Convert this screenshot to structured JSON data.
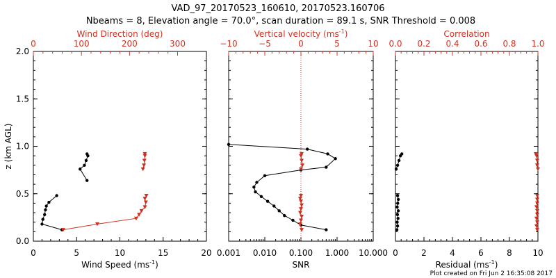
{
  "figure": {
    "title_line1": "VAD_97_20170523_160610, 20170523.160706",
    "title_line2": "Nbeams = 8, Elevation angle = 70.0°, scan duration = 89.1 s, SNR Threshold = 0.008",
    "footer": "Plot created on Fri Jun  2 16:35:08 2017",
    "colors": {
      "black": "#000000",
      "red": "#d03020"
    }
  },
  "chart_data": [
    {
      "type": "line",
      "panel": "wind",
      "ylabel": "z (km AGL)",
      "ylim": [
        0,
        2
      ],
      "yticks": [
        "0.0",
        "0.5",
        "1.0",
        "1.5",
        "2.0"
      ],
      "xlabel_bottom": "Wind Speed (ms",
      "xlabel_bottom_sup": "-1",
      "xlabel_bottom_suffix": ")",
      "xlim_bottom": [
        0,
        20
      ],
      "xticks_bottom": [
        "0",
        "5",
        "10",
        "15",
        "20"
      ],
      "xlabel_top": "Wind Direction (deg)",
      "xlim_top": [
        0,
        360
      ],
      "xticks_top": [
        "0",
        "100",
        "200",
        "300"
      ],
      "series": [
        {
          "axis": "bottom",
          "color": "#000000",
          "marker": "circle",
          "segments": [
            [
              [
                3.3,
                0.12
              ],
              [
                1.0,
                0.18
              ],
              [
                1.1,
                0.23
              ],
              [
                1.3,
                0.28
              ],
              [
                1.4,
                0.33
              ],
              [
                1.5,
                0.37
              ],
              [
                1.8,
                0.41
              ],
              [
                2.7,
                0.48
              ]
            ],
            [
              [
                6.2,
                0.64
              ],
              [
                5.4,
                0.76
              ],
              [
                5.9,
                0.8
              ],
              [
                6.1,
                0.85
              ],
              [
                6.3,
                0.9
              ],
              [
                6.2,
                0.92
              ]
            ]
          ]
        },
        {
          "axis": "top",
          "color": "#d03020",
          "marker": "triangle",
          "segments": [
            [
              [
                62,
                0.12
              ],
              [
                133,
                0.18
              ],
              [
                214,
                0.24
              ],
              [
                220,
                0.28
              ],
              [
                225,
                0.32
              ],
              [
                232,
                0.36
              ],
              [
                234,
                0.41
              ],
              [
                232,
                0.45
              ],
              [
                235,
                0.48
              ]
            ],
            [
              [
                228,
                0.76
              ],
              [
                230,
                0.8
              ],
              [
                231,
                0.85
              ],
              [
                232,
                0.9
              ],
              [
                232,
                0.92
              ]
            ]
          ]
        }
      ]
    },
    {
      "type": "line",
      "panel": "snr",
      "xlabel_bottom": "SNR",
      "xscale_bottom": "log",
      "xlim_bottom": [
        0.001,
        10
      ],
      "xticks_bottom": [
        "0.001",
        "0.010",
        "0.100",
        "1.000",
        "10.000"
      ],
      "xlabel_top": "Vertical velocity (ms",
      "xlabel_top_sup": "-1",
      "xlabel_top_suffix": ")",
      "xlim_top": [
        -10,
        10
      ],
      "xticks_top": [
        "−10",
        "−5",
        "0",
        "5",
        "10"
      ],
      "zero_line_top": 0,
      "series": [
        {
          "axis": "bottom",
          "color": "#000000",
          "marker": "circle",
          "points": [
            [
              0.5,
              0.12
            ],
            [
              0.1,
              0.17
            ],
            [
              0.06,
              0.22
            ],
            [
              0.035,
              0.27
            ],
            [
              0.025,
              0.32
            ],
            [
              0.018,
              0.37
            ],
            [
              0.012,
              0.42
            ],
            [
              0.008,
              0.47
            ],
            [
              0.0055,
              0.52
            ],
            [
              0.005,
              0.57
            ],
            [
              0.006,
              0.62
            ],
            [
              0.01,
              0.69
            ],
            [
              0.1,
              0.75
            ],
            [
              0.5,
              0.78
            ],
            [
              0.9,
              0.87
            ],
            [
              0.55,
              0.92
            ],
            [
              0.15,
              0.97
            ],
            [
              0.001,
              1.02
            ]
          ]
        },
        {
          "axis": "top",
          "color": "#d03020",
          "marker": "triangle",
          "segments": [
            [
              [
                0.1,
                0.12
              ],
              [
                -0.1,
                0.18
              ],
              [
                0.0,
                0.22
              ],
              [
                0.1,
                0.26
              ],
              [
                -0.1,
                0.3
              ],
              [
                0.0,
                0.34
              ],
              [
                0.1,
                0.38
              ],
              [
                0.0,
                0.42
              ],
              [
                -0.1,
                0.45
              ],
              [
                0.0,
                0.48
              ]
            ],
            [
              [
                0.0,
                0.76
              ],
              [
                0.2,
                0.8
              ],
              [
                0.1,
                0.85
              ],
              [
                0.0,
                0.9
              ],
              [
                0.1,
                0.92
              ]
            ]
          ]
        }
      ]
    },
    {
      "type": "line",
      "panel": "residual",
      "xlabel_bottom": "Residual (ms",
      "xlabel_bottom_sup": "-1",
      "xlabel_bottom_suffix": ")",
      "xlim_bottom": [
        0,
        10
      ],
      "xticks_bottom": [
        "0",
        "2",
        "4",
        "6",
        "8",
        "10"
      ],
      "xlabel_top": "Correlation",
      "xlim_top": [
        0,
        1
      ],
      "xticks_top": [
        "0.0",
        "0.2",
        "0.4",
        "0.6",
        "0.8",
        "1.0"
      ],
      "series": [
        {
          "axis": "bottom",
          "color": "#000000",
          "marker": "circle",
          "segments": [
            [
              [
                0.1,
                0.12
              ],
              [
                0.15,
                0.16
              ],
              [
                0.12,
                0.2
              ],
              [
                0.18,
                0.24
              ],
              [
                0.14,
                0.28
              ],
              [
                0.2,
                0.32
              ],
              [
                0.12,
                0.36
              ],
              [
                0.16,
                0.4
              ],
              [
                0.2,
                0.44
              ],
              [
                0.15,
                0.48
              ]
            ],
            [
              [
                0.05,
                0.76
              ],
              [
                0.15,
                0.8
              ],
              [
                0.25,
                0.85
              ],
              [
                0.35,
                0.9
              ],
              [
                0.45,
                0.92
              ]
            ]
          ]
        },
        {
          "axis": "top",
          "color": "#d03020",
          "marker": "triangle",
          "segments": [
            [
              [
                0.995,
                0.12
              ],
              [
                0.99,
                0.16
              ],
              [
                0.995,
                0.2
              ],
              [
                0.99,
                0.24
              ],
              [
                0.995,
                0.28
              ],
              [
                0.995,
                0.32
              ],
              [
                0.99,
                0.36
              ],
              [
                0.995,
                0.4
              ],
              [
                0.995,
                0.44
              ],
              [
                0.995,
                0.48
              ]
            ],
            [
              [
                1.0,
                0.76
              ],
              [
                0.995,
                0.8
              ],
              [
                0.995,
                0.85
              ],
              [
                0.99,
                0.9
              ],
              [
                0.985,
                0.92
              ]
            ]
          ]
        }
      ]
    }
  ]
}
